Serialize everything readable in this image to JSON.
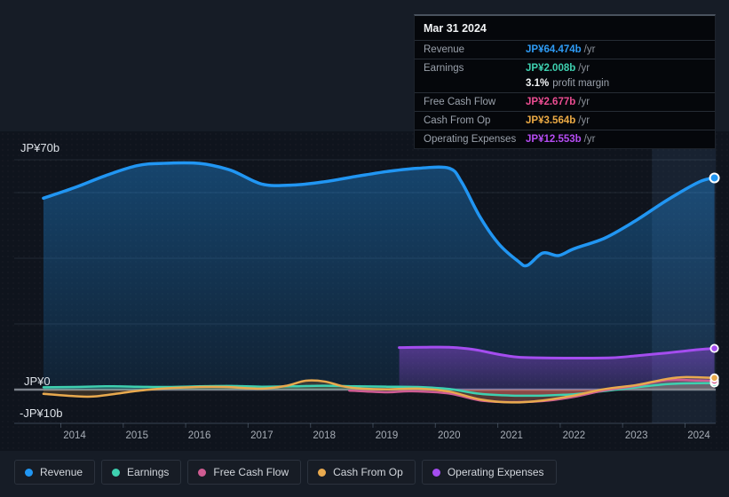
{
  "tooltip": {
    "date": "Mar 31 2024",
    "rows": [
      {
        "label": "Revenue",
        "value": "JP¥64.474b",
        "suffix": "/yr",
        "color": "#2e9bf5"
      },
      {
        "label": "Earnings",
        "value": "JP¥2.008b",
        "suffix": "/yr",
        "color": "#3ed0b0",
        "extra_value": "3.1%",
        "extra_label": "profit margin"
      },
      {
        "label": "Free Cash Flow",
        "value": "JP¥2.677b",
        "suffix": "/yr",
        "color": "#ec4d92"
      },
      {
        "label": "Cash From Op",
        "value": "JP¥3.564b",
        "suffix": "/yr",
        "color": "#ecaa44"
      },
      {
        "label": "Operating Expenses",
        "value": "JP¥12.553b",
        "suffix": "/yr",
        "color": "#b54cf2"
      }
    ]
  },
  "axis": {
    "y_top_label": "JP¥70b",
    "y_zero_label": "JP¥0",
    "y_neg_label": "-JP¥10b"
  },
  "legend": {
    "items": [
      {
        "label": "Revenue",
        "color": "#2196f3"
      },
      {
        "label": "Earnings",
        "color": "#3ed0b0"
      },
      {
        "label": "Free Cash Flow",
        "color": "#cf5c92"
      },
      {
        "label": "Cash From Op",
        "color": "#e8a94e"
      },
      {
        "label": "Operating Expenses",
        "color": "#a44def"
      }
    ]
  },
  "chart_data": {
    "type": "line",
    "unit": "JP¥ billions per year",
    "ylim": [
      -10,
      70
    ],
    "y_gridlines": [
      70,
      60,
      40,
      20,
      0
    ],
    "x_tick_labels": [
      2014,
      2015,
      2016,
      2017,
      2018,
      2019,
      2020,
      2021,
      2022,
      2023,
      2024
    ],
    "highlight_from_year": 2023.25,
    "highlight_to_year": 2024.26,
    "series": [
      {
        "name": "Revenue",
        "color": "#2196f3",
        "points": [
          [
            2013.5,
            58.3
          ],
          [
            2014,
            61.5
          ],
          [
            2014.5,
            65.2
          ],
          [
            2015,
            68.2
          ],
          [
            2015.4,
            68.9
          ],
          [
            2016,
            68.9
          ],
          [
            2016.5,
            66.8
          ],
          [
            2017,
            62.6
          ],
          [
            2017.5,
            62.3
          ],
          [
            2018,
            63.3
          ],
          [
            2018.5,
            64.9
          ],
          [
            2019,
            66.4
          ],
          [
            2019.5,
            67.4
          ],
          [
            2020,
            67.4
          ],
          [
            2020.2,
            63.2
          ],
          [
            2020.5,
            52.4
          ],
          [
            2020.8,
            44.3
          ],
          [
            2021.1,
            39.2
          ],
          [
            2021.25,
            37.8
          ],
          [
            2021.5,
            41.6
          ],
          [
            2021.75,
            40.8
          ],
          [
            2022,
            42.9
          ],
          [
            2022.5,
            46.2
          ],
          [
            2023,
            51.6
          ],
          [
            2023.5,
            57.8
          ],
          [
            2024,
            63.2
          ],
          [
            2024.25,
            64.474
          ]
        ]
      },
      {
        "name": "Earnings",
        "color": "#3ed0b0",
        "negative_fill": "#e44e5a",
        "points": [
          [
            2013.5,
            0.7
          ],
          [
            2014,
            0.8
          ],
          [
            2014.5,
            1.0
          ],
          [
            2015,
            0.9
          ],
          [
            2015.5,
            0.8
          ],
          [
            2016,
            1.0
          ],
          [
            2016.5,
            1.1
          ],
          [
            2017,
            0.9
          ],
          [
            2017.5,
            1.0
          ],
          [
            2018,
            1.2
          ],
          [
            2018.5,
            1.0
          ],
          [
            2019,
            0.9
          ],
          [
            2019.5,
            0.8
          ],
          [
            2020,
            0.2
          ],
          [
            2020.5,
            -1.3
          ],
          [
            2021,
            -1.8
          ],
          [
            2021.5,
            -1.8
          ],
          [
            2022,
            -1.4
          ],
          [
            2022.5,
            -0.4
          ],
          [
            2023,
            0.7
          ],
          [
            2023.5,
            1.7
          ],
          [
            2024,
            1.95
          ],
          [
            2024.25,
            2.008
          ]
        ]
      },
      {
        "name": "Free Cash Flow",
        "color": "#cf5c92",
        "points": [
          [
            2018.4,
            -0.3
          ],
          [
            2019,
            -0.8
          ],
          [
            2019.4,
            -0.5
          ],
          [
            2020,
            -1.2
          ],
          [
            2020.5,
            -3.3
          ],
          [
            2021,
            -3.8
          ],
          [
            2021.5,
            -3.5
          ],
          [
            2022,
            -2.2
          ],
          [
            2022.5,
            -0.2
          ],
          [
            2023,
            1.2
          ],
          [
            2023.5,
            2.9
          ],
          [
            2024,
            2.75
          ],
          [
            2024.25,
            2.677
          ]
        ]
      },
      {
        "name": "Cash From Op",
        "color": "#e8a94e",
        "points": [
          [
            2013.5,
            -1.3
          ],
          [
            2014,
            -2.0
          ],
          [
            2014.3,
            -2.1
          ],
          [
            2014.7,
            -1.2
          ],
          [
            2015,
            -0.4
          ],
          [
            2015.4,
            0.3
          ],
          [
            2016,
            0.8
          ],
          [
            2016.4,
            0.8
          ],
          [
            2017,
            0.3
          ],
          [
            2017.4,
            1.2
          ],
          [
            2017.7,
            2.7
          ],
          [
            2018,
            2.5
          ],
          [
            2018.3,
            1.0
          ],
          [
            2018.6,
            0.3
          ],
          [
            2019,
            0.1
          ],
          [
            2019.5,
            0.3
          ],
          [
            2020,
            -0.6
          ],
          [
            2020.5,
            -3.0
          ],
          [
            2021,
            -3.9
          ],
          [
            2021.5,
            -3.3
          ],
          [
            2022,
            -1.8
          ],
          [
            2022.5,
            0.2
          ],
          [
            2023,
            1.4
          ],
          [
            2023.5,
            3.3
          ],
          [
            2023.8,
            3.8
          ],
          [
            2024.25,
            3.564
          ]
        ]
      },
      {
        "name": "Operating Expenses",
        "color": "#a44def",
        "points": [
          [
            2019.2,
            12.8
          ],
          [
            2019.6,
            12.9
          ],
          [
            2020,
            12.9
          ],
          [
            2020.4,
            12.2
          ],
          [
            2020.8,
            10.7
          ],
          [
            2021.1,
            9.9
          ],
          [
            2021.4,
            9.7
          ],
          [
            2022,
            9.6
          ],
          [
            2022.6,
            9.7
          ],
          [
            2023,
            10.3
          ],
          [
            2023.5,
            11.2
          ],
          [
            2024,
            12.2
          ],
          [
            2024.25,
            12.553
          ]
        ]
      }
    ]
  }
}
